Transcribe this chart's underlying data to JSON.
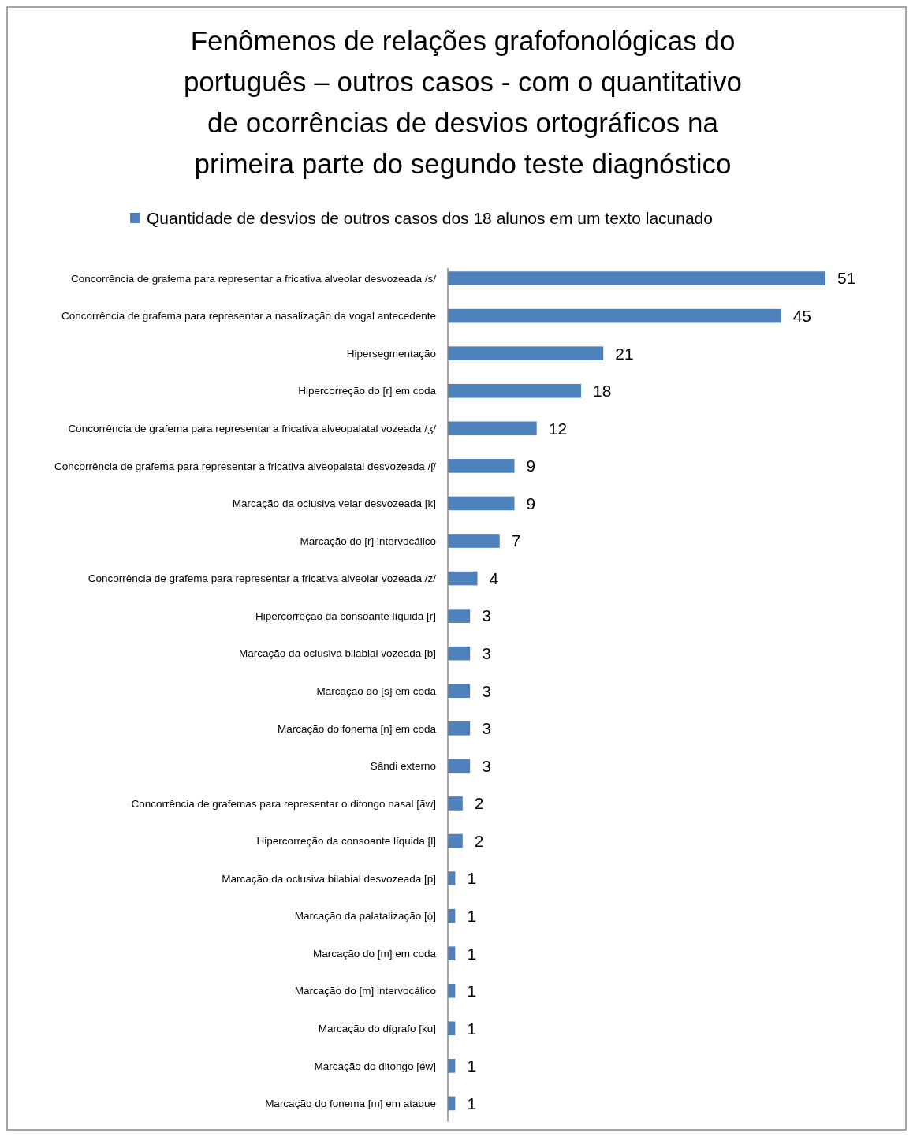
{
  "chart_data": {
    "type": "bar",
    "orientation": "horizontal",
    "title": "Fenômenos de relações grafofonológicas do português – outros casos - com o quantitativo de ocorrências de desvios ortográficos na primeira parte do segundo teste diagnóstico",
    "categories": [
      "Concorrência de grafema para representar a fricativa alveolar desvozeada /s/",
      "Concorrência de grafema para representar a nasalização da vogal antecedente",
      "Hipersegmentação",
      "Hipercorreção do [r] em coda",
      "Concorrência de grafema para representar a fricativa alveopalatal vozeada /ʒ/",
      "Concorrência de grafema para representar a fricativa alveopalatal desvozeada /ʃ/",
      "Marcação da oclusiva velar desvozeada [k]",
      "Marcação do [r] intervocálico",
      "Concorrência de grafema para representar a fricativa alveolar vozeada /z/",
      "Hipercorreção da consoante líquida [r]",
      "Marcação da oclusiva bilabial vozeada [b]",
      "Marcação do [s] em coda",
      "Marcação do fonema [n] em coda",
      "Sândi externo",
      "Concorrência de grafemas para representar o ditongo nasal [ãw]",
      "Hipercorreção da consoante líquida [l]",
      "Marcação da oclusiva bilabial desvozeada [p]",
      "Marcação da palatalização [ɸ]",
      "Marcação do [m] em coda",
      "Marcação do [m] intervocálico",
      "Marcação do dígrafo [ku]",
      "Marcação do ditongo [éw]",
      "Marcação do fonema [m] em ataque"
    ],
    "series": [
      {
        "name": "Quantidade de desvios de outros casos dos 18 alunos em um texto lacunado",
        "color": "#4f81bd",
        "values": [
          51,
          45,
          21,
          18,
          12,
          9,
          9,
          7,
          4,
          3,
          3,
          3,
          3,
          3,
          2,
          2,
          1,
          1,
          1,
          1,
          1,
          1,
          1
        ]
      }
    ],
    "data_labels": true,
    "legend": "top",
    "tick_labels": "y"
  }
}
